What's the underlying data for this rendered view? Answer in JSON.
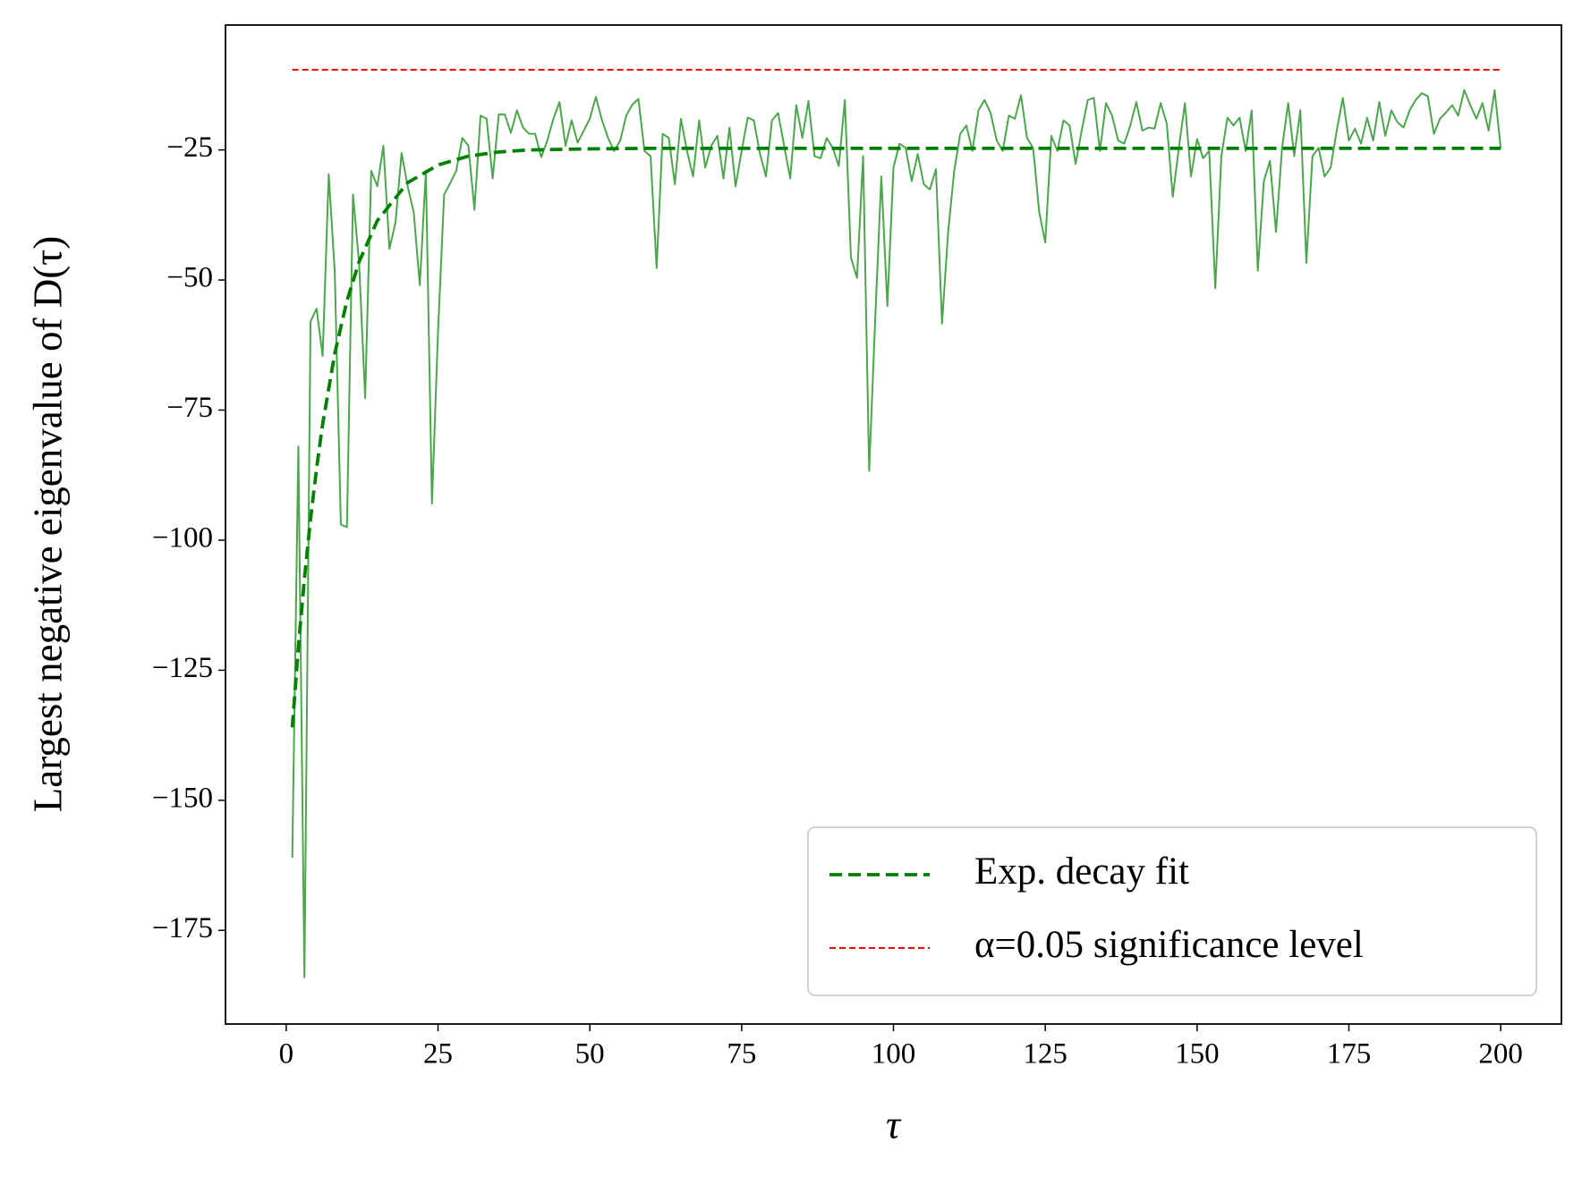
{
  "chart_data": {
    "type": "line",
    "xlabel": "τ",
    "ylabel": "Largest negative eigenvalue of D(τ)",
    "xlim": [
      -10,
      210
    ],
    "ylim": [
      -193,
      -1
    ],
    "xticks": [
      0,
      25,
      50,
      75,
      100,
      125,
      150,
      175,
      200
    ],
    "yticks": [
      {
        "value": -175,
        "label": "−175"
      },
      {
        "value": -150,
        "label": "−150"
      },
      {
        "value": -125,
        "label": "−125"
      },
      {
        "value": -100,
        "label": "−100"
      },
      {
        "value": -75,
        "label": "−75"
      },
      {
        "value": -50,
        "label": "−50"
      },
      {
        "value": -25,
        "label": "−25"
      }
    ],
    "grid": false,
    "legend": "lower right",
    "series": [
      {
        "color": "#4da64d",
        "linestyle": "solid",
        "x": [
          1,
          2,
          3,
          4,
          5,
          6,
          7,
          8,
          9,
          10,
          11,
          12,
          13,
          14,
          15,
          16,
          17,
          18,
          19,
          20,
          21,
          22,
          23,
          24,
          25,
          26,
          27,
          28,
          29,
          30,
          31,
          32,
          33,
          34,
          35,
          36,
          37,
          38,
          39,
          40,
          41,
          42,
          43,
          44,
          45,
          46,
          47,
          48,
          49,
          50,
          51,
          52,
          53,
          54,
          55,
          56,
          57,
          58,
          59,
          60,
          61,
          62,
          63,
          64,
          65,
          66,
          67,
          68,
          69,
          70,
          71,
          72,
          73,
          74,
          75,
          76,
          77,
          78,
          79,
          80,
          81,
          82,
          83,
          84,
          85,
          86,
          87,
          88,
          89,
          90,
          91,
          92,
          93,
          94,
          95,
          96,
          97,
          98,
          99,
          100,
          101,
          102,
          103,
          104,
          105,
          106,
          107,
          108,
          109,
          110,
          111,
          112,
          113,
          114,
          115,
          116,
          117,
          118,
          119,
          120,
          121,
          122,
          123,
          124,
          125,
          126,
          127,
          128,
          129,
          130,
          131,
          132,
          133,
          134,
          135,
          136,
          137,
          138,
          139,
          140,
          141,
          142,
          143,
          144,
          145,
          146,
          147,
          148,
          149,
          150,
          151,
          152,
          153,
          154,
          155,
          156,
          157,
          158,
          159,
          160,
          161,
          162,
          163,
          164,
          165,
          166,
          167,
          168,
          169,
          170,
          171,
          172,
          173,
          174,
          175,
          176,
          177,
          178,
          179,
          180,
          181,
          182,
          183,
          184,
          185,
          186,
          187,
          188,
          189,
          190,
          191,
          192,
          193,
          194,
          195,
          196,
          197,
          198,
          199,
          200
        ],
        "values": [
          -161,
          -82,
          -184,
          -58,
          -55.5,
          -64.6,
          -29.7,
          -48.6,
          -97,
          -97.5,
          -33.6,
          -46.7,
          -72.7,
          -29,
          -32,
          -24.2,
          -44,
          -38.9,
          -25.6,
          -32,
          -37,
          -51,
          -29,
          -93,
          -60,
          -33.6,
          -31.4,
          -29,
          -22.7,
          -24.2,
          -36.5,
          -18.4,
          -19,
          -30.5,
          -18.2,
          -18.2,
          -21.7,
          -17.4,
          -20.7,
          -21.9,
          -21.9,
          -26.4,
          -23.2,
          -19,
          -15.8,
          -24.2,
          -19.3,
          -23.6,
          -21.3,
          -19,
          -14.8,
          -19.3,
          -22.7,
          -25.2,
          -23.2,
          -18.4,
          -16.3,
          -15.2,
          -25.2,
          -26.2,
          -47.7,
          -21.9,
          -22.7,
          -31.6,
          -19,
          -25.2,
          -30.1,
          -19.3,
          -28.4,
          -24.2,
          -22.3,
          -30.5,
          -20.7,
          -32,
          -25.2,
          -18.8,
          -19.3,
          -25.6,
          -30.1,
          -19.3,
          -17.9,
          -24.2,
          -30.5,
          -16.4,
          -22.7,
          -15.6,
          -26.2,
          -26.6,
          -22.7,
          -24.6,
          -28.1,
          -15.4,
          -45.7,
          -49.6,
          -26.2,
          -86.7,
          -57.4,
          -30.1,
          -55,
          -28.4,
          -23.8,
          -24.6,
          -31,
          -25.8,
          -31.6,
          -32.6,
          -28.7,
          -58.4,
          -40.8,
          -29.1,
          -21.9,
          -20.3,
          -25.2,
          -17.4,
          -15.4,
          -17.9,
          -23.2,
          -25.2,
          -18.4,
          -19,
          -14.5,
          -22.7,
          -24.6,
          -36.9,
          -42.8,
          -22.3,
          -25.2,
          -19.3,
          -20.3,
          -27.7,
          -21.3,
          -15.4,
          -15,
          -25.2,
          -16,
          -18.4,
          -23.2,
          -23.8,
          -20.3,
          -15.8,
          -21.3,
          -20.7,
          -20.9,
          -16,
          -19.9,
          -34,
          -24.6,
          -16,
          -30.1,
          -22.9,
          -26.6,
          -25.2,
          -51.6,
          -26.2,
          -18.8,
          -20.3,
          -18.8,
          -25.2,
          -17.4,
          -48.2,
          -31,
          -27.1,
          -40.8,
          -24.6,
          -16,
          -26.2,
          -17.4,
          -46.7,
          -26.2,
          -24.6,
          -30.1,
          -28.4,
          -21.3,
          -15,
          -23.2,
          -20.9,
          -23.8,
          -18.8,
          -23.2,
          -15.8,
          -22.3,
          -17.4,
          -19.7,
          -20.7,
          -17.4,
          -15.4,
          -14.1,
          -14.7,
          -21.9,
          -19,
          -17.8,
          -16.4,
          -18.4,
          -13.5,
          -16.4,
          -19,
          -16,
          -21.3,
          -13.5,
          -24.6
        ]
      },
      {
        "name": "Exp. decay fit",
        "color": "#008000",
        "linestyle": "dashed",
        "x": [
          1,
          2,
          3,
          4,
          5,
          6,
          8,
          10,
          12,
          15,
          20,
          25,
          30,
          35,
          40,
          50,
          60,
          200
        ],
        "values": [
          -136,
          -120.6,
          -107.4,
          -96,
          -86.2,
          -77.7,
          -64.1,
          -54,
          -46.5,
          -38.6,
          -31.3,
          -27.9,
          -26.2,
          -25.4,
          -25,
          -24.8,
          -24.7,
          -24.7
        ]
      },
      {
        "name": "α=0.05 significance level",
        "color": "#ff0000",
        "linestyle": "dashed",
        "x": [
          1,
          200
        ],
        "values": [
          -9.6,
          -9.6
        ]
      }
    ]
  }
}
